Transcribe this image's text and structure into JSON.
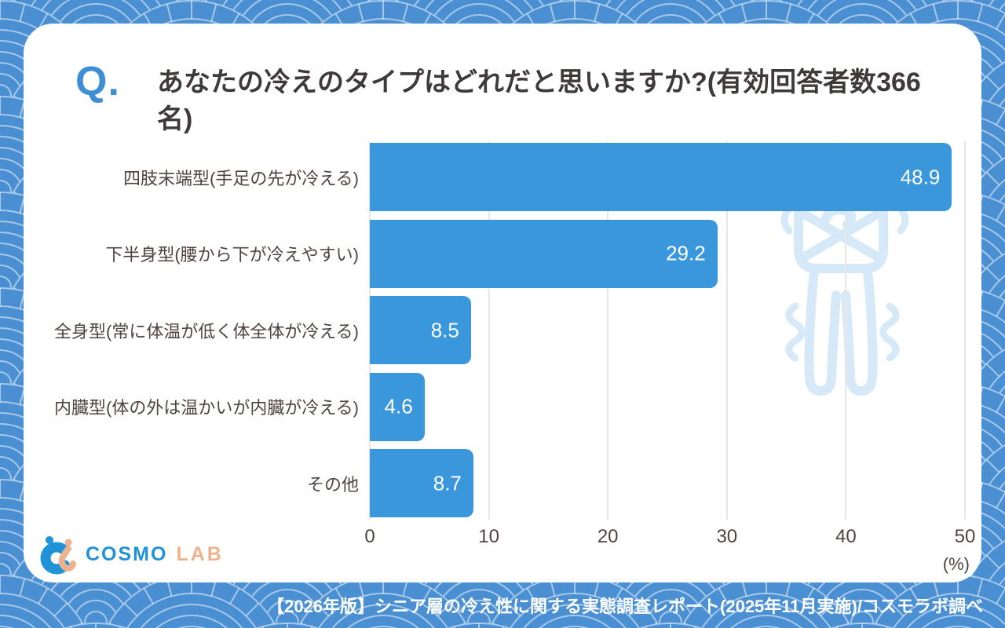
{
  "question": {
    "prefix": "Q.",
    "title": "あなたの冷えのタイプはどれだと思いますか?(有効回答者数366名)"
  },
  "chart_data": {
    "type": "bar",
    "orientation": "horizontal",
    "title": "あなたの冷えのタイプはどれだと思いますか?",
    "respondents_note": "有効回答者数366名",
    "categories": [
      "四肢末端型(手足の先が冷える)",
      "下半身型(腰から下が冷えやすい)",
      "全身型(常に体温が低く体全体が冷える)",
      "内臓型(体の外は温かいが内臓が冷える)",
      "その他"
    ],
    "values": [
      48.9,
      29.2,
      8.5,
      4.6,
      8.7
    ],
    "xlim": [
      0,
      50
    ],
    "xticks": [
      0,
      10,
      20,
      30,
      40,
      50
    ],
    "unit_label": "(%)",
    "grid": true,
    "legend": false,
    "bar_color": "#3B97DC",
    "value_label_color": "#ffffff"
  },
  "watermark": {
    "icon": "shivering-person"
  },
  "logo": {
    "brand_primary": "COSMO",
    "brand_secondary": "LAB",
    "color_primary": "#2093D6",
    "color_secondary": "#EFB28F"
  },
  "footer": {
    "caption": "【2026年版】シニア層の冷え性に関する実態調査レポート(2025年11月実施)/コスモラボ調べ"
  },
  "colors": {
    "accent_blue": "#3E8ED6",
    "background_blue": "#4A8FD2",
    "pattern_line": "#9CBEE6",
    "text_dark": "#3E3A39",
    "label_brown": "#4E4341",
    "watermark_blue": "#D6E9F8"
  }
}
